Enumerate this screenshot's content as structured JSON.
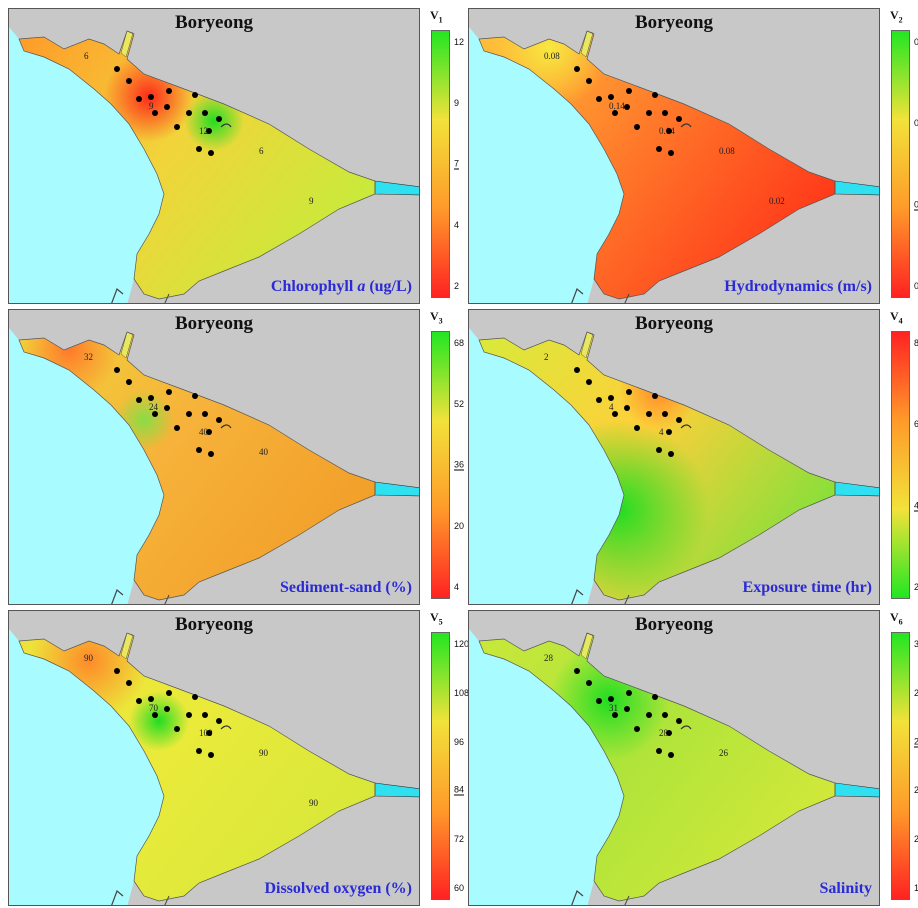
{
  "colors": {
    "ocean": "#a8fbff",
    "land": "#c8c8c8",
    "title": "#111111",
    "label": "#2b2bd6",
    "point": "#000000",
    "channel": "#2ee0f0"
  },
  "panels": [
    {
      "id": "chlorophyll",
      "title": "Boryeong",
      "v_label": "V",
      "v_index": "1",
      "label_prefix": "Chlorophyll ",
      "label_italic": "a",
      "label_suffix": " (ug/L)",
      "colorbar": {
        "top_color": "#22e622",
        "bottom_color": "#ff2222",
        "ticks": [
          "12",
          "9",
          "7",
          "4",
          "2"
        ],
        "highlight": "7"
      },
      "contours": [
        "9",
        "6",
        "12",
        "6",
        "9"
      ],
      "scheme": "chl"
    },
    {
      "id": "hydrodynamics",
      "title": "Boryeong",
      "v_label": "V",
      "v_index": "2",
      "label_prefix": "Hydrodynamics (m/s)",
      "label_italic": "",
      "label_suffix": "",
      "colorbar": {
        "top_color": "#22e622",
        "bottom_color": "#ff2222",
        "ticks": [
          "0.30",
          "0.20",
          "0.10",
          "0.00"
        ],
        "highlight": "0.10"
      },
      "contours": [
        "0.14",
        "0.08",
        "0.14",
        "0.08",
        "0.02"
      ],
      "scheme": "hydro"
    },
    {
      "id": "sediment",
      "title": "Boryeong",
      "v_label": "V",
      "v_index": "3",
      "label_prefix": "Sediment-sand (%)",
      "label_italic": "",
      "label_suffix": "",
      "colorbar": {
        "top_color": "#22e622",
        "bottom_color": "#ff2222",
        "ticks": [
          "68",
          "52",
          "36",
          "20",
          "4"
        ],
        "highlight": "36"
      },
      "contours": [
        "24",
        "32",
        "40",
        "40"
      ],
      "scheme": "sed"
    },
    {
      "id": "exposure",
      "title": "Boryeong",
      "v_label": "V",
      "v_index": "4",
      "label_prefix": "Exposure time (hr)",
      "label_italic": "",
      "label_suffix": "",
      "colorbar": {
        "top_color": "#ff2222",
        "bottom_color": "#22e622",
        "ticks": [
          "8",
          "6",
          "4",
          "2"
        ],
        "highlight": "4"
      },
      "contours": [
        "4",
        "2",
        "4"
      ],
      "scheme": "exp"
    },
    {
      "id": "dissolved_oxygen",
      "title": "Boryeong",
      "v_label": "V",
      "v_index": "5",
      "label_prefix": "Dissolved oxygen (%)",
      "label_italic": "",
      "label_suffix": "",
      "colorbar": {
        "top_color": "#22e622",
        "bottom_color": "#ff2222",
        "ticks": [
          "120",
          "108",
          "96",
          "84",
          "72",
          "60"
        ],
        "highlight": "84"
      },
      "contours": [
        "70",
        "90",
        "100",
        "90",
        "90"
      ],
      "scheme": "do"
    },
    {
      "id": "salinity",
      "title": "Boryeong",
      "v_label": "V",
      "v_index": "6",
      "label_prefix": "Salinity",
      "label_italic": "",
      "label_suffix": "",
      "colorbar": {
        "top_color": "#22e622",
        "bottom_color": "#ff2222",
        "ticks": [
          "31",
          "28",
          "25",
          "23",
          "20",
          "17"
        ],
        "highlight": "25"
      },
      "contours": [
        "31",
        "28",
        "28",
        "26"
      ],
      "scheme": "sal"
    }
  ]
}
